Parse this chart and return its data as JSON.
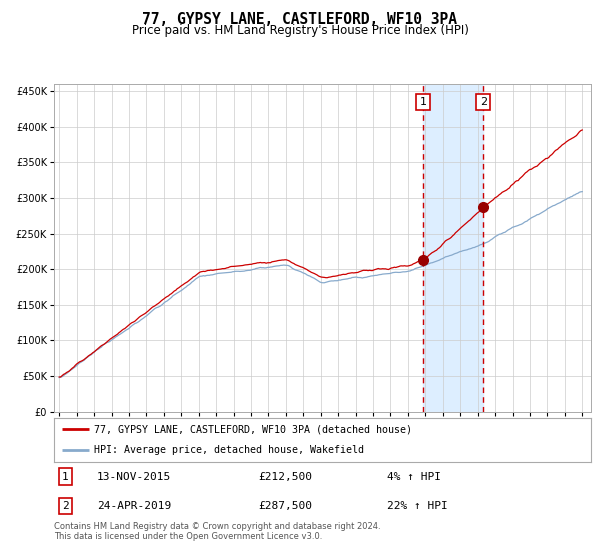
{
  "title": "77, GYPSY LANE, CASTLEFORD, WF10 3PA",
  "subtitle": "Price paid vs. HM Land Registry's House Price Index (HPI)",
  "ylim": [
    0,
    460000
  ],
  "yticks": [
    0,
    50000,
    100000,
    150000,
    200000,
    250000,
    300000,
    350000,
    400000,
    450000
  ],
  "xlim_start": 1994.7,
  "xlim_end": 2025.5,
  "sale1_date": 2015.87,
  "sale1_price": 212500,
  "sale2_date": 2019.32,
  "sale2_price": 287500,
  "line1_color": "#cc0000",
  "line2_color": "#88aacc",
  "shade_color": "#ddeeff",
  "dashed_color": "#cc0000",
  "marker_color": "#990000",
  "legend1": "77, GYPSY LANE, CASTLEFORD, WF10 3PA (detached house)",
  "legend2": "HPI: Average price, detached house, Wakefield",
  "footnote1": "Contains HM Land Registry data © Crown copyright and database right 2024.",
  "footnote2": "This data is licensed under the Open Government Licence v3.0.",
  "background_color": "#ffffff",
  "grid_color": "#cccccc"
}
